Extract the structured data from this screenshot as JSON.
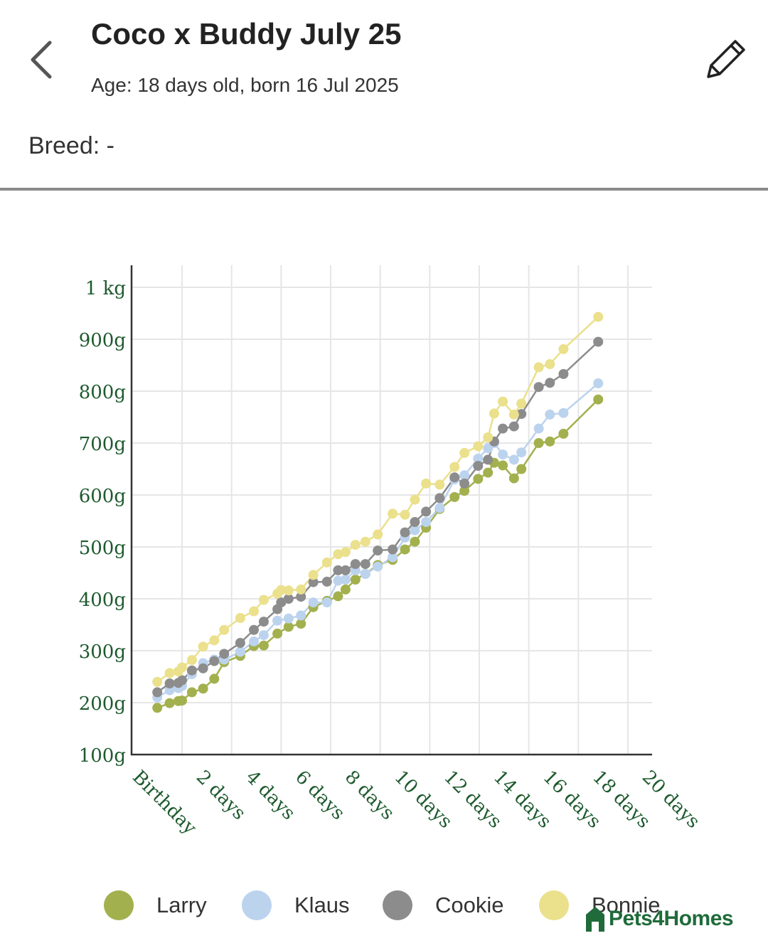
{
  "header": {
    "title": "Coco x Buddy July 25",
    "age": "Age: 18 days old, born 16 Jul 2025",
    "back_icon": "chevron-left-icon",
    "edit_icon": "pencil-icon"
  },
  "breed": {
    "text": "Breed: -"
  },
  "brand": {
    "name": "Pets4Homes",
    "icon": "house-icon",
    "color": "#1f6b3a"
  },
  "chart_data": {
    "type": "line",
    "title": "",
    "xlabel": "",
    "ylabel": "",
    "xlim": [
      -1,
      20
    ],
    "ylim": [
      100,
      1000
    ],
    "grid": true,
    "legend_position": "bottom",
    "x_ticks": [
      {
        "value": 0,
        "label": "Birthday"
      },
      {
        "value": 2,
        "label": "2 days"
      },
      {
        "value": 4,
        "label": "4 days"
      },
      {
        "value": 6,
        "label": "6 days"
      },
      {
        "value": 8,
        "label": "8 days"
      },
      {
        "value": 10,
        "label": "10 days"
      },
      {
        "value": 12,
        "label": "12 days"
      },
      {
        "value": 14,
        "label": "14 days"
      },
      {
        "value": 16,
        "label": "16 days"
      },
      {
        "value": 18,
        "label": "18 days"
      },
      {
        "value": 20,
        "label": "20 days"
      }
    ],
    "y_ticks": [
      {
        "value": 100,
        "label": "100g"
      },
      {
        "value": 200,
        "label": "200g"
      },
      {
        "value": 300,
        "label": "300g"
      },
      {
        "value": 400,
        "label": "400g"
      },
      {
        "value": 500,
        "label": "500g"
      },
      {
        "value": 600,
        "label": "600g"
      },
      {
        "value": 700,
        "label": "700g"
      },
      {
        "value": 800,
        "label": "800g"
      },
      {
        "value": 900,
        "label": "900g"
      },
      {
        "value": 1000,
        "label": "1 kg"
      }
    ],
    "series": [
      {
        "name": "Larry",
        "color": "#a3b04e",
        "points": [
          [
            0.0,
            190
          ],
          [
            0.5,
            199
          ],
          [
            0.85,
            203
          ],
          [
            1.0,
            204
          ],
          [
            1.4,
            220
          ],
          [
            1.85,
            227
          ],
          [
            2.3,
            246
          ],
          [
            2.7,
            278
          ],
          [
            3.35,
            290
          ],
          [
            3.9,
            309
          ],
          [
            4.3,
            310
          ],
          [
            4.85,
            333
          ],
          [
            5.3,
            346
          ],
          [
            5.8,
            352
          ],
          [
            6.3,
            384
          ],
          [
            6.85,
            396
          ],
          [
            7.3,
            405
          ],
          [
            7.6,
            418
          ],
          [
            8.0,
            437
          ],
          [
            8.4,
            448
          ],
          [
            8.9,
            465
          ],
          [
            9.5,
            475
          ],
          [
            10.0,
            495
          ],
          [
            10.4,
            510
          ],
          [
            10.85,
            537
          ],
          [
            11.4,
            573
          ],
          [
            12.0,
            596
          ],
          [
            12.4,
            608
          ],
          [
            12.95,
            631
          ],
          [
            13.35,
            643
          ],
          [
            13.6,
            662
          ],
          [
            13.95,
            657
          ],
          [
            14.4,
            632
          ],
          [
            14.7,
            650
          ],
          [
            15.4,
            700
          ],
          [
            15.85,
            703
          ],
          [
            16.4,
            718
          ],
          [
            17.8,
            784
          ]
        ]
      },
      {
        "name": "Klaus",
        "color": "#bcd3ee",
        "points": [
          [
            0.0,
            210
          ],
          [
            0.5,
            224
          ],
          [
            0.85,
            228
          ],
          [
            1.0,
            232
          ],
          [
            1.4,
            255
          ],
          [
            1.85,
            276
          ],
          [
            2.3,
            283
          ],
          [
            2.7,
            283
          ],
          [
            3.35,
            298
          ],
          [
            3.9,
            318
          ],
          [
            4.3,
            330
          ],
          [
            4.85,
            358
          ],
          [
            5.3,
            362
          ],
          [
            5.8,
            368
          ],
          [
            6.3,
            393
          ],
          [
            6.85,
            393
          ],
          [
            7.3,
            435
          ],
          [
            7.6,
            437
          ],
          [
            8.0,
            455
          ],
          [
            8.4,
            448
          ],
          [
            8.9,
            462
          ],
          [
            9.5,
            480
          ],
          [
            10.0,
            518
          ],
          [
            10.4,
            532
          ],
          [
            10.85,
            548
          ],
          [
            11.4,
            575
          ],
          [
            12.0,
            630
          ],
          [
            12.4,
            638
          ],
          [
            12.95,
            670
          ],
          [
            13.35,
            690
          ],
          [
            13.6,
            700
          ],
          [
            13.95,
            678
          ],
          [
            14.4,
            668
          ],
          [
            14.7,
            682
          ],
          [
            15.4,
            728
          ],
          [
            15.85,
            755
          ],
          [
            16.4,
            758
          ],
          [
            17.8,
            815
          ]
        ]
      },
      {
        "name": "Cookie",
        "color": "#8c8c8c",
        "points": [
          [
            0.0,
            220
          ],
          [
            0.5,
            237
          ],
          [
            0.85,
            238
          ],
          [
            1.0,
            243
          ],
          [
            1.4,
            262
          ],
          [
            1.85,
            266
          ],
          [
            2.3,
            280
          ],
          [
            2.7,
            294
          ],
          [
            3.35,
            315
          ],
          [
            3.9,
            340
          ],
          [
            4.3,
            356
          ],
          [
            4.85,
            380
          ],
          [
            5.0,
            393
          ],
          [
            5.3,
            400
          ],
          [
            5.8,
            404
          ],
          [
            6.3,
            432
          ],
          [
            6.85,
            433
          ],
          [
            7.3,
            455
          ],
          [
            7.6,
            455
          ],
          [
            8.0,
            467
          ],
          [
            8.4,
            467
          ],
          [
            8.9,
            493
          ],
          [
            9.5,
            495
          ],
          [
            10.0,
            528
          ],
          [
            10.4,
            548
          ],
          [
            10.85,
            568
          ],
          [
            11.4,
            594
          ],
          [
            12.0,
            634
          ],
          [
            12.4,
            622
          ],
          [
            12.95,
            656
          ],
          [
            13.35,
            668
          ],
          [
            13.6,
            703
          ],
          [
            13.95,
            728
          ],
          [
            14.4,
            732
          ],
          [
            14.7,
            756
          ],
          [
            15.4,
            808
          ],
          [
            15.85,
            816
          ],
          [
            16.4,
            833
          ],
          [
            17.8,
            895
          ]
        ]
      },
      {
        "name": "Bonnie",
        "color": "#ebe08c",
        "points": [
          [
            0.0,
            240
          ],
          [
            0.5,
            257
          ],
          [
            0.85,
            260
          ],
          [
            1.0,
            268
          ],
          [
            1.4,
            282
          ],
          [
            1.85,
            308
          ],
          [
            2.3,
            320
          ],
          [
            2.7,
            340
          ],
          [
            3.35,
            363
          ],
          [
            3.9,
            376
          ],
          [
            4.3,
            398
          ],
          [
            4.85,
            410
          ],
          [
            5.0,
            417
          ],
          [
            5.3,
            416
          ],
          [
            5.8,
            418
          ],
          [
            6.3,
            446
          ],
          [
            6.85,
            470
          ],
          [
            7.3,
            486
          ],
          [
            7.6,
            490
          ],
          [
            8.0,
            504
          ],
          [
            8.4,
            510
          ],
          [
            8.9,
            524
          ],
          [
            9.5,
            564
          ],
          [
            10.0,
            562
          ],
          [
            10.4,
            591
          ],
          [
            10.85,
            622
          ],
          [
            11.4,
            620
          ],
          [
            12.0,
            654
          ],
          [
            12.4,
            681
          ],
          [
            12.95,
            694
          ],
          [
            13.35,
            711
          ],
          [
            13.6,
            757
          ],
          [
            13.95,
            780
          ],
          [
            14.4,
            755
          ],
          [
            14.7,
            776
          ],
          [
            15.4,
            846
          ],
          [
            15.85,
            852
          ],
          [
            16.4,
            881
          ],
          [
            17.8,
            943
          ]
        ]
      }
    ]
  }
}
